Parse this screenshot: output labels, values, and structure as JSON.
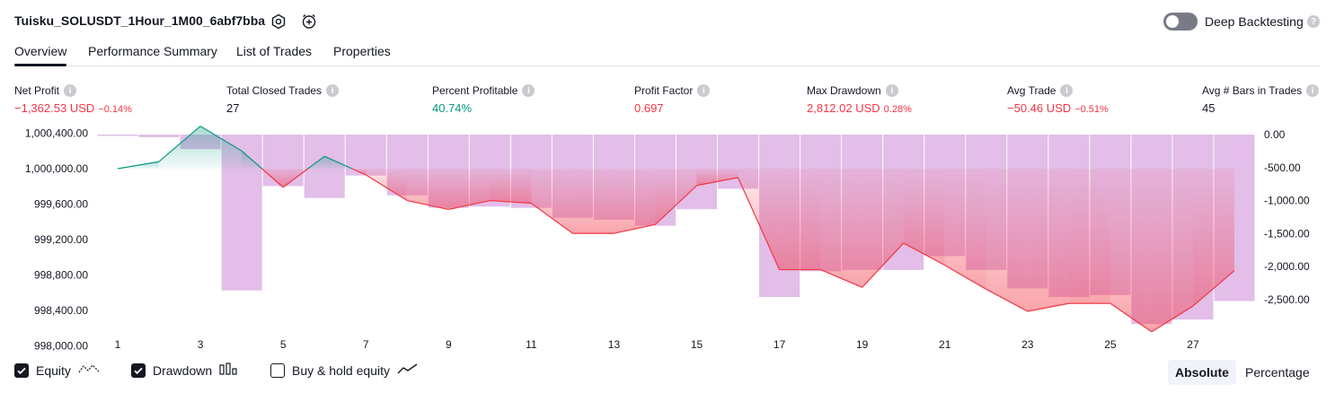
{
  "header": {
    "strategy_name": "Tuisku_SOLUSDT_1Hour_1M00_6abf7bba",
    "deep_backtesting_label": "Deep Backtesting",
    "deep_backtesting_enabled": false
  },
  "tabs": [
    {
      "label": "Overview",
      "active": true
    },
    {
      "label": "Performance Summary",
      "active": false
    },
    {
      "label": "List of Trades",
      "active": false
    },
    {
      "label": "Properties",
      "active": false
    }
  ],
  "stats": [
    {
      "label": "Net Profit",
      "value": "−1,362.53 USD",
      "pct": "−0.14%",
      "tone": "red"
    },
    {
      "label": "Total Closed Trades",
      "value": "27",
      "pct": "",
      "tone": "dark"
    },
    {
      "label": "Percent Profitable",
      "value": "40.74%",
      "pct": "",
      "tone": "green"
    },
    {
      "label": "Profit Factor",
      "value": "0.697",
      "pct": "",
      "tone": "red"
    },
    {
      "label": "Max Drawdown",
      "value": "2,812.02 USD",
      "pct": "0.28%",
      "tone": "red"
    },
    {
      "label": "Avg Trade",
      "value": "−50.46 USD",
      "pct": "−0.51%",
      "tone": "red"
    },
    {
      "label": "Avg # Bars in Trades",
      "value": "45",
      "pct": "",
      "tone": "dark"
    }
  ],
  "chart_data": {
    "type": "line",
    "x_ticks": [
      "1",
      "3",
      "5",
      "7",
      "9",
      "11",
      "13",
      "15",
      "17",
      "19",
      "21",
      "23",
      "25",
      "27"
    ],
    "y_left_ticks": [
      "1,000,400.00",
      "1,000,000.00",
      "999,600.00",
      "999,200.00",
      "998,800.00",
      "998,400.00",
      "998,000.00"
    ],
    "y_left_values": [
      1000400,
      1000000,
      999600,
      999200,
      998800,
      998400,
      998000
    ],
    "y_right_ticks": [
      "0.00",
      "-500.00",
      "-1,000.00",
      "-1,500.00",
      "-2,000.00",
      "-2,500.00"
    ],
    "y_right_values": [
      0,
      -500,
      -1000,
      -1500,
      -2000,
      -2500
    ],
    "baseline": 1000000,
    "series": [
      {
        "name": "Equity",
        "color": "#089981",
        "negative_color": "#f23645",
        "x": [
          1,
          2,
          3,
          4,
          5,
          6,
          7,
          8,
          9,
          10,
          11,
          12,
          13,
          14,
          15,
          16,
          17,
          18,
          19,
          20,
          21,
          22,
          23,
          24,
          25,
          26,
          27,
          28
        ],
        "values": [
          1000000,
          1000080,
          1000480,
          1000200,
          999790,
          1000140,
          999930,
          999640,
          999540,
          999640,
          999610,
          999270,
          999270,
          999370,
          999810,
          999900,
          998860,
          998860,
          998660,
          999160,
          998910,
          998640,
          998390,
          998480,
          998480,
          998160,
          998450,
          998850
        ]
      },
      {
        "name": "Drawdown",
        "x": [
          1,
          2,
          3,
          4,
          5,
          6,
          7,
          8,
          9,
          10,
          11,
          12,
          13,
          14,
          15,
          16,
          17,
          18,
          19,
          20,
          21,
          22,
          23,
          24,
          25,
          26,
          27,
          28
        ],
        "values": [
          0,
          -40,
          -220,
          -2360,
          -780,
          -960,
          -620,
          -920,
          -1110,
          -1090,
          -1110,
          -1260,
          -1290,
          -1380,
          -1130,
          -820,
          -2460,
          -2070,
          -2050,
          -2050,
          -1840,
          -2050,
          -2330,
          -2460,
          -2430,
          -2870,
          -2800,
          -2520
        ]
      }
    ]
  },
  "legend": [
    {
      "label": "Equity",
      "checked": true,
      "icon": "equity-line-icon"
    },
    {
      "label": "Drawdown",
      "checked": true,
      "icon": "drawdown-bars-icon"
    },
    {
      "label": "Buy & hold equity",
      "checked": false,
      "icon": "buy-hold-line-icon"
    }
  ],
  "view_toggle": {
    "absolute_label": "Absolute",
    "percentage_label": "Percentage",
    "active": "Absolute"
  },
  "colors": {
    "profit": "#089981",
    "loss": "#f23645",
    "drawdown_bar": "#ce93d8",
    "accent": "#131722"
  }
}
